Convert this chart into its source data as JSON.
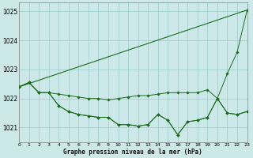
{
  "title": "Graphe pression niveau de la mer (hPa)",
  "background_color": "#cce8e8",
  "grid_color": "#99cccc",
  "line_color": "#1a6e1a",
  "marker_color": "#1a6e1a",
  "xlim": [
    0,
    23
  ],
  "ylim": [
    1020.5,
    1025.3
  ],
  "yticks": [
    1021,
    1022,
    1023,
    1024,
    1025
  ],
  "ytick_labels": [
    "1021",
    "1022",
    "1023",
    "1024",
    "1025"
  ],
  "xtick_labels": [
    "0",
    "1",
    "2",
    "3",
    "4",
    "5",
    "6",
    "7",
    "8",
    "9",
    "10",
    "11",
    "12",
    "13",
    "14",
    "15",
    "16",
    "17",
    "18",
    "19",
    "20",
    "21",
    "22",
    "23"
  ],
  "series": [
    {
      "x": [
        0,
        23
      ],
      "y": [
        1022.4,
        1025.05
      ],
      "marker": false
    },
    {
      "x": [
        0,
        1,
        2,
        3,
        4,
        5,
        6,
        7,
        8,
        9,
        10,
        11,
        12,
        13,
        14,
        15,
        16,
        17,
        18,
        19,
        20,
        21,
        22,
        23
      ],
      "y": [
        1022.4,
        1022.55,
        1022.2,
        1022.2,
        1022.15,
        1022.1,
        1022.05,
        1022.0,
        1022.0,
        1021.95,
        1022.0,
        1022.05,
        1022.1,
        1022.1,
        1022.15,
        1022.2,
        1022.2,
        1022.2,
        1022.2,
        1022.3,
        1022.0,
        1021.5,
        1021.45,
        1021.55
      ],
      "marker": true
    },
    {
      "x": [
        0,
        1,
        2,
        3,
        4,
        5,
        6,
        7,
        8,
        9,
        10,
        11,
        12,
        13,
        14,
        15,
        16,
        17,
        18,
        19,
        20,
        21,
        22,
        23
      ],
      "y": [
        1022.4,
        1022.55,
        1022.2,
        1022.2,
        1021.75,
        1021.55,
        1021.45,
        1021.4,
        1021.35,
        1021.35,
        1021.1,
        1021.1,
        1021.05,
        1021.1,
        1021.45,
        1021.25,
        1020.75,
        1021.2,
        1021.25,
        1021.35,
        1022.0,
        1021.5,
        1021.45,
        1021.55
      ],
      "marker": true
    },
    {
      "x": [
        0,
        1,
        2,
        3,
        4,
        5,
        6,
        7,
        8,
        9,
        10,
        11,
        12,
        13,
        14,
        15,
        16,
        17,
        18,
        19,
        20,
        21,
        22,
        23
      ],
      "y": [
        1022.4,
        1022.55,
        1022.2,
        1022.2,
        1021.75,
        1021.55,
        1021.45,
        1021.4,
        1021.35,
        1021.35,
        1021.1,
        1021.1,
        1021.05,
        1021.1,
        1021.45,
        1021.25,
        1020.75,
        1021.2,
        1021.25,
        1021.35,
        1022.0,
        1022.85,
        1023.6,
        1025.05
      ],
      "marker": true
    }
  ]
}
